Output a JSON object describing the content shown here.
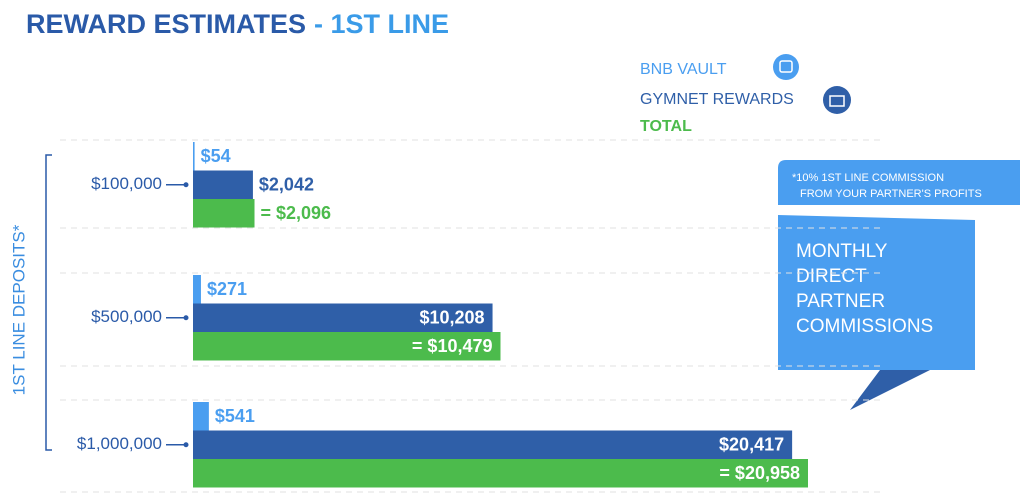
{
  "chart_data": {
    "type": "bar",
    "title": "REWARD ESTIMATES",
    "subtitle": "- 1ST LINE",
    "y_axis_label": "1ST LINE DEPOSITS*",
    "categories": [
      "$100,000",
      "$500,000",
      "$1,000,000"
    ],
    "series": [
      {
        "name": "BNB VAULT",
        "color": "#4a9ef0",
        "values": [
          54,
          271,
          541
        ],
        "value_labels": [
          "$54",
          "$271",
          "$541"
        ]
      },
      {
        "name": "GYMNET REWARDS",
        "color": "#2f5fa8",
        "values": [
          2042,
          10208,
          20417
        ],
        "value_labels": [
          "$2,042",
          "$10,208",
          "$20,417"
        ]
      },
      {
        "name": "TOTAL",
        "color": "#4cbb4c",
        "values": [
          2096,
          10479,
          20958
        ],
        "value_labels": [
          "= $2,096",
          "= $10,479",
          "= $20,958"
        ]
      }
    ],
    "annotations": [
      "*10% 1ST LINE COMMISSION",
      "FROM YOUR PARTNER'S PROFITS",
      "MONTHLY",
      "DIRECT",
      "PARTNER",
      "COMMISSIONS"
    ]
  }
}
